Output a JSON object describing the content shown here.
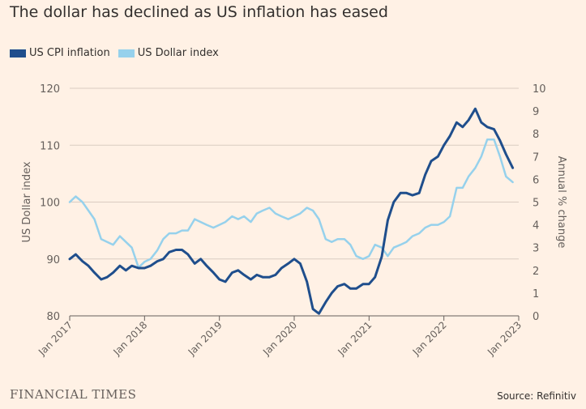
{
  "chart_data": {
    "type": "line",
    "title": "The dollar has declined as US inflation has eased",
    "left_axis": {
      "label": "US Dollar index",
      "range": [
        80,
        120
      ],
      "ticks": [
        80,
        90,
        100,
        110,
        120
      ]
    },
    "right_axis": {
      "label": "Annual % change",
      "range": [
        0,
        10
      ],
      "ticks": [
        0,
        1,
        2,
        3,
        4,
        5,
        6,
        7,
        8,
        9,
        10
      ]
    },
    "x_ticks": [
      "Jan 2017",
      "Jan 2018",
      "Jan 2019",
      "Jan 2020",
      "Jan 2021",
      "Jan 2022",
      "Jan 2023"
    ],
    "x_range": [
      2017,
      2023
    ],
    "grid": true,
    "legend_position": "top-left",
    "colors": {
      "cpi": "#1F4E8C",
      "dollar": "#96D1EC",
      "grid": "#D9CCC1",
      "background": "#FFF1E5"
    },
    "series": [
      {
        "name": "US CPI inflation",
        "axis": "right",
        "x": [
          2017.0,
          2017.08,
          2017.17,
          2017.25,
          2017.33,
          2017.42,
          2017.5,
          2017.58,
          2017.67,
          2017.75,
          2017.83,
          2017.92,
          2018.0,
          2018.08,
          2018.17,
          2018.25,
          2018.33,
          2018.42,
          2018.5,
          2018.58,
          2018.67,
          2018.75,
          2018.83,
          2018.92,
          2019.0,
          2019.08,
          2019.17,
          2019.25,
          2019.33,
          2019.42,
          2019.5,
          2019.58,
          2019.67,
          2019.75,
          2019.83,
          2019.92,
          2020.0,
          2020.08,
          2020.17,
          2020.25,
          2020.33,
          2020.42,
          2020.5,
          2020.58,
          2020.67,
          2020.75,
          2020.83,
          2020.92,
          2021.0,
          2021.08,
          2021.17,
          2021.25,
          2021.33,
          2021.42,
          2021.5,
          2021.58,
          2021.67,
          2021.75,
          2021.83,
          2021.92,
          2022.0,
          2022.08,
          2022.17,
          2022.25,
          2022.33,
          2022.42,
          2022.5,
          2022.58,
          2022.67,
          2022.75,
          2022.83,
          2022.92
        ],
        "values": [
          2.5,
          2.7,
          2.4,
          2.2,
          1.9,
          1.6,
          1.7,
          1.9,
          2.2,
          2.0,
          2.2,
          2.1,
          2.1,
          2.2,
          2.4,
          2.5,
          2.8,
          2.9,
          2.9,
          2.7,
          2.3,
          2.5,
          2.2,
          1.9,
          1.6,
          1.5,
          1.9,
          2.0,
          1.8,
          1.6,
          1.8,
          1.7,
          1.7,
          1.8,
          2.1,
          2.3,
          2.5,
          2.3,
          1.5,
          0.3,
          0.1,
          0.6,
          1.0,
          1.3,
          1.4,
          1.2,
          1.2,
          1.4,
          1.4,
          1.7,
          2.6,
          4.2,
          5.0,
          5.4,
          5.4,
          5.3,
          5.4,
          6.2,
          6.8,
          7.0,
          7.5,
          7.9,
          8.5,
          8.3,
          8.6,
          9.1,
          8.5,
          8.3,
          8.2,
          7.7,
          7.1,
          6.5
        ]
      },
      {
        "name": "US Dollar index",
        "axis": "left",
        "x": [
          2017.0,
          2017.08,
          2017.17,
          2017.25,
          2017.33,
          2017.42,
          2017.5,
          2017.58,
          2017.67,
          2017.75,
          2017.83,
          2017.92,
          2018.0,
          2018.08,
          2018.17,
          2018.25,
          2018.33,
          2018.42,
          2018.5,
          2018.58,
          2018.67,
          2018.75,
          2018.83,
          2018.92,
          2019.0,
          2019.08,
          2019.17,
          2019.25,
          2019.33,
          2019.42,
          2019.5,
          2019.58,
          2019.67,
          2019.75,
          2019.83,
          2019.92,
          2020.0,
          2020.08,
          2020.17,
          2020.25,
          2020.33,
          2020.42,
          2020.5,
          2020.58,
          2020.67,
          2020.75,
          2020.83,
          2020.92,
          2021.0,
          2021.08,
          2021.17,
          2021.25,
          2021.33,
          2021.42,
          2021.5,
          2021.58,
          2021.67,
          2021.75,
          2021.83,
          2021.92,
          2022.0,
          2022.08,
          2022.17,
          2022.25,
          2022.33,
          2022.42,
          2022.5,
          2022.58,
          2022.67,
          2022.75,
          2022.83,
          2022.92
        ],
        "values": [
          100.0,
          101.0,
          100.0,
          98.5,
          97.0,
          93.5,
          93.0,
          92.5,
          94.0,
          93.0,
          92.0,
          88.5,
          89.5,
          90.0,
          91.5,
          93.5,
          94.5,
          94.5,
          95.0,
          95.0,
          97.0,
          96.5,
          96.0,
          95.5,
          96.0,
          96.5,
          97.5,
          97.0,
          97.5,
          96.5,
          98.0,
          98.5,
          99.0,
          98.0,
          97.5,
          97.0,
          97.5,
          98.0,
          99.0,
          98.5,
          97.0,
          93.5,
          93.0,
          93.5,
          93.5,
          92.5,
          90.5,
          90.0,
          90.5,
          92.5,
          92.0,
          90.5,
          92.0,
          92.5,
          93.0,
          94.0,
          94.5,
          95.5,
          96.0,
          96.0,
          96.5,
          97.5,
          102.5,
          102.5,
          104.5,
          106.0,
          108.0,
          111.0,
          111.0,
          108.0,
          104.5,
          103.5
        ]
      }
    ]
  },
  "source": "Source: Refinitiv",
  "brand": "FINANCIAL TIMES"
}
